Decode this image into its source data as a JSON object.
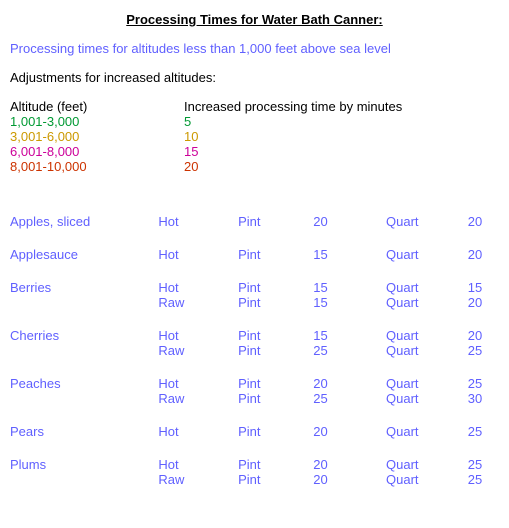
{
  "title": "Processing Times for Water Bath Canner:",
  "subtitle": "Processing times for altitudes less than 1,000 feet above sea level",
  "adjust_label": "Adjustments for increased altitudes:",
  "altitude_table": {
    "col1": "Altitude (feet)",
    "col2": "Increased processing time by minutes",
    "rows": [
      {
        "range": "1,001-3,000",
        "add": "5"
      },
      {
        "range": "3,001-6,000",
        "add": "10"
      },
      {
        "range": "6,001-8,000",
        "add": "15"
      },
      {
        "range": "8,001-10,000",
        "add": "20"
      }
    ],
    "row_colors": [
      "#009933",
      "#cc9900",
      "#cc0099",
      "#cc3300"
    ]
  },
  "labels": {
    "pint": "Pint",
    "quart": "Quart",
    "hot": "Hot",
    "raw": "Raw"
  },
  "fruits": [
    {
      "name": "Apples, sliced",
      "rows": [
        {
          "pack": "Hot",
          "pint": "20",
          "quart": "20"
        }
      ]
    },
    {
      "name": "Applesauce",
      "rows": [
        {
          "pack": "Hot",
          "pint": "15",
          "quart": "20"
        }
      ]
    },
    {
      "name": "Berries",
      "rows": [
        {
          "pack": "Hot",
          "pint": "15",
          "quart": "15"
        },
        {
          "pack": "Raw",
          "pint": "15",
          "quart": "20"
        }
      ]
    },
    {
      "name": "Cherries",
      "rows": [
        {
          "pack": "Hot",
          "pint": "15",
          "quart": "20"
        },
        {
          "pack": "Raw",
          "pint": "25",
          "quart": "25"
        }
      ]
    },
    {
      "name": "Peaches",
      "rows": [
        {
          "pack": "Hot",
          "pint": "20",
          "quart": "25"
        },
        {
          "pack": "Raw",
          "pint": "25",
          "quart": "30"
        }
      ]
    },
    {
      "name": "Pears",
      "rows": [
        {
          "pack": "Hot",
          "pint": "20",
          "quart": "25"
        }
      ]
    },
    {
      "name": "Plums",
      "rows": [
        {
          "pack": "Hot",
          "pint": "20",
          "quart": "25"
        },
        {
          "pack": "Raw",
          "pint": "20",
          "quart": "25"
        }
      ]
    }
  ],
  "style": {
    "text_color_primary": "#000000",
    "text_color_accent": "#6060ff",
    "background": "#ffffff",
    "font_family": "Arial",
    "font_size_pt": 10
  }
}
